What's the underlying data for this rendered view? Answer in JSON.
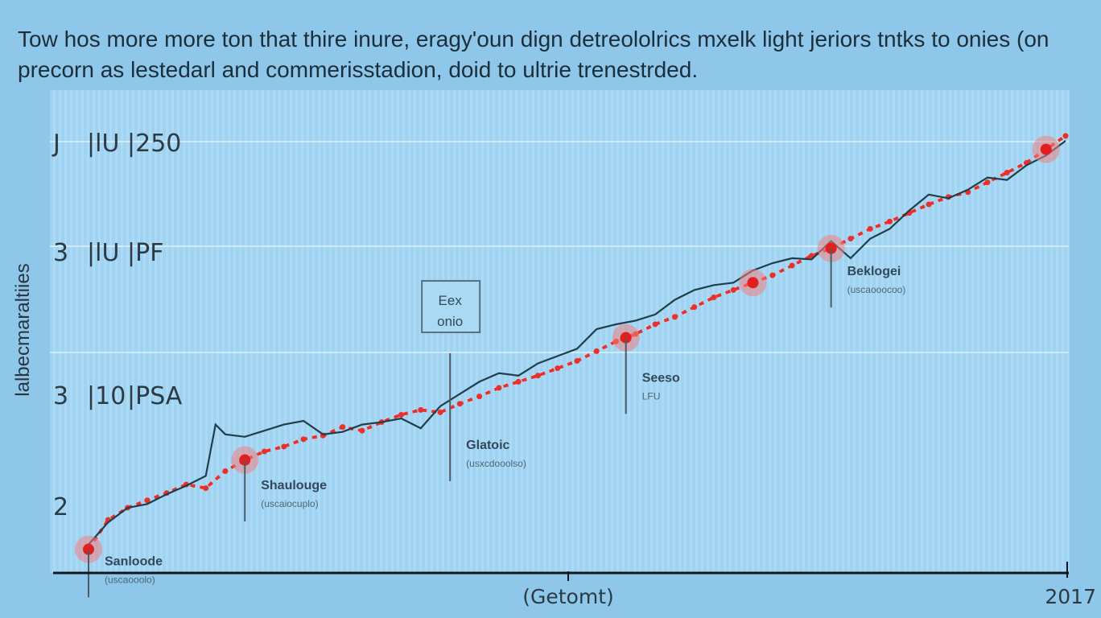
{
  "title": "Tow hos more more ton that thire inure, eragy'oun dign detreololrics mxelk light jeriors tntks to onies (on precorn as lestedarl and commerisstadion, doid to ultrie trenestrded.",
  "chart_data": {
    "type": "line",
    "ylabel": "lalbecmaraltiies",
    "xlabel": "(Getomt)",
    "x_end_label": "2017",
    "y_ticks": [
      {
        "value": 4,
        "parts": [
          "J",
          "|lU",
          "|250"
        ]
      },
      {
        "value": 3,
        "parts": [
          "3",
          "|lU",
          "|PF"
        ]
      },
      {
        "value": 2,
        "parts": [
          "3",
          "|10",
          "|PSA"
        ]
      },
      {
        "value": 1,
        "parts": [
          "2",
          "",
          ""
        ]
      }
    ],
    "ylim": [
      0.5,
      4.2
    ],
    "xlim": [
      0,
      100
    ],
    "grid": true,
    "series": [
      {
        "color": "#e8302c",
        "style": "dotted-markers",
        "x": [
          0,
          2,
          4,
          6,
          8,
          10,
          12,
          14,
          16,
          18,
          20,
          22,
          24,
          26,
          28,
          30,
          32,
          34,
          36,
          38,
          40,
          42,
          44,
          46,
          48,
          50,
          52,
          54,
          56,
          58,
          60,
          62,
          64,
          66,
          68,
          70,
          72,
          74,
          76,
          78,
          80,
          82,
          84,
          86,
          88,
          90,
          92,
          94,
          96,
          98,
          100
        ],
        "y": [
          0.68,
          0.92,
          1.02,
          1.08,
          1.14,
          1.21,
          1.18,
          1.32,
          1.41,
          1.48,
          1.52,
          1.58,
          1.61,
          1.68,
          1.65,
          1.72,
          1.78,
          1.82,
          1.8,
          1.87,
          1.93,
          2.0,
          2.05,
          2.1,
          2.16,
          2.22,
          2.3,
          2.38,
          2.44,
          2.52,
          2.58,
          2.66,
          2.74,
          2.8,
          2.86,
          2.92,
          3.0,
          3.08,
          3.14,
          3.22,
          3.3,
          3.36,
          3.43,
          3.5,
          3.56,
          3.6,
          3.68,
          3.76,
          3.84,
          3.95,
          4.06
        ]
      },
      {
        "color": "#1f3e4a",
        "style": "line",
        "x": [
          0,
          2,
          4,
          6,
          8,
          10,
          12,
          13,
          14,
          16,
          18,
          20,
          22,
          24,
          26,
          28,
          30,
          32,
          34,
          36,
          38,
          40,
          42,
          44,
          46,
          48,
          50,
          52,
          54,
          56,
          58,
          60,
          62,
          64,
          66,
          68,
          70,
          72,
          74,
          76,
          78,
          80,
          82,
          84,
          86,
          88,
          90,
          92,
          94,
          96,
          98,
          100
        ],
        "y": [
          0.72,
          0.9,
          1.02,
          1.05,
          1.13,
          1.2,
          1.28,
          1.7,
          1.62,
          1.6,
          1.65,
          1.7,
          1.73,
          1.62,
          1.64,
          1.7,
          1.72,
          1.75,
          1.67,
          1.85,
          1.95,
          2.05,
          2.12,
          2.1,
          2.2,
          2.26,
          2.32,
          2.48,
          2.52,
          2.55,
          2.6,
          2.72,
          2.8,
          2.84,
          2.86,
          2.96,
          3.02,
          3.06,
          3.05,
          3.2,
          3.06,
          3.22,
          3.3,
          3.45,
          3.58,
          3.55,
          3.62,
          3.72,
          3.7,
          3.82,
          3.9,
          4.02
        ]
      }
    ],
    "highlights": [
      {
        "x": 0,
        "y": 0.68
      },
      {
        "x": 16,
        "y": 1.41
      },
      {
        "x": 55,
        "y": 2.41
      },
      {
        "x": 68,
        "y": 2.86
      },
      {
        "x": 76,
        "y": 3.14
      },
      {
        "x": 98,
        "y": 3.95
      }
    ],
    "annotations": [
      {
        "x": 0,
        "y": 0.55,
        "label": "Sanloode",
        "sub": "(uscaooolo)",
        "line_from": 0.68
      },
      {
        "x": 16,
        "y": 1.17,
        "label": "Shaulouge",
        "sub": "(uscaiocuplo)",
        "line_from": 1.41
      },
      {
        "x": 37,
        "y": 1.5,
        "label": "Glatoic",
        "sub": "(usxcdooolso)",
        "line_from": 1.7
      },
      {
        "x": 55,
        "y": 2.05,
        "label": "Seeso",
        "sub": "LFU",
        "line_from": 2.41
      },
      {
        "x": 76,
        "y": 2.92,
        "label": "Beklogei",
        "sub": "(uscaooocoo)",
        "line_from": 3.14
      }
    ],
    "box_annotation": {
      "x": 37,
      "y": 2.48,
      "lines": [
        "Eex",
        "onio"
      ],
      "line_to": 1.7
    }
  }
}
